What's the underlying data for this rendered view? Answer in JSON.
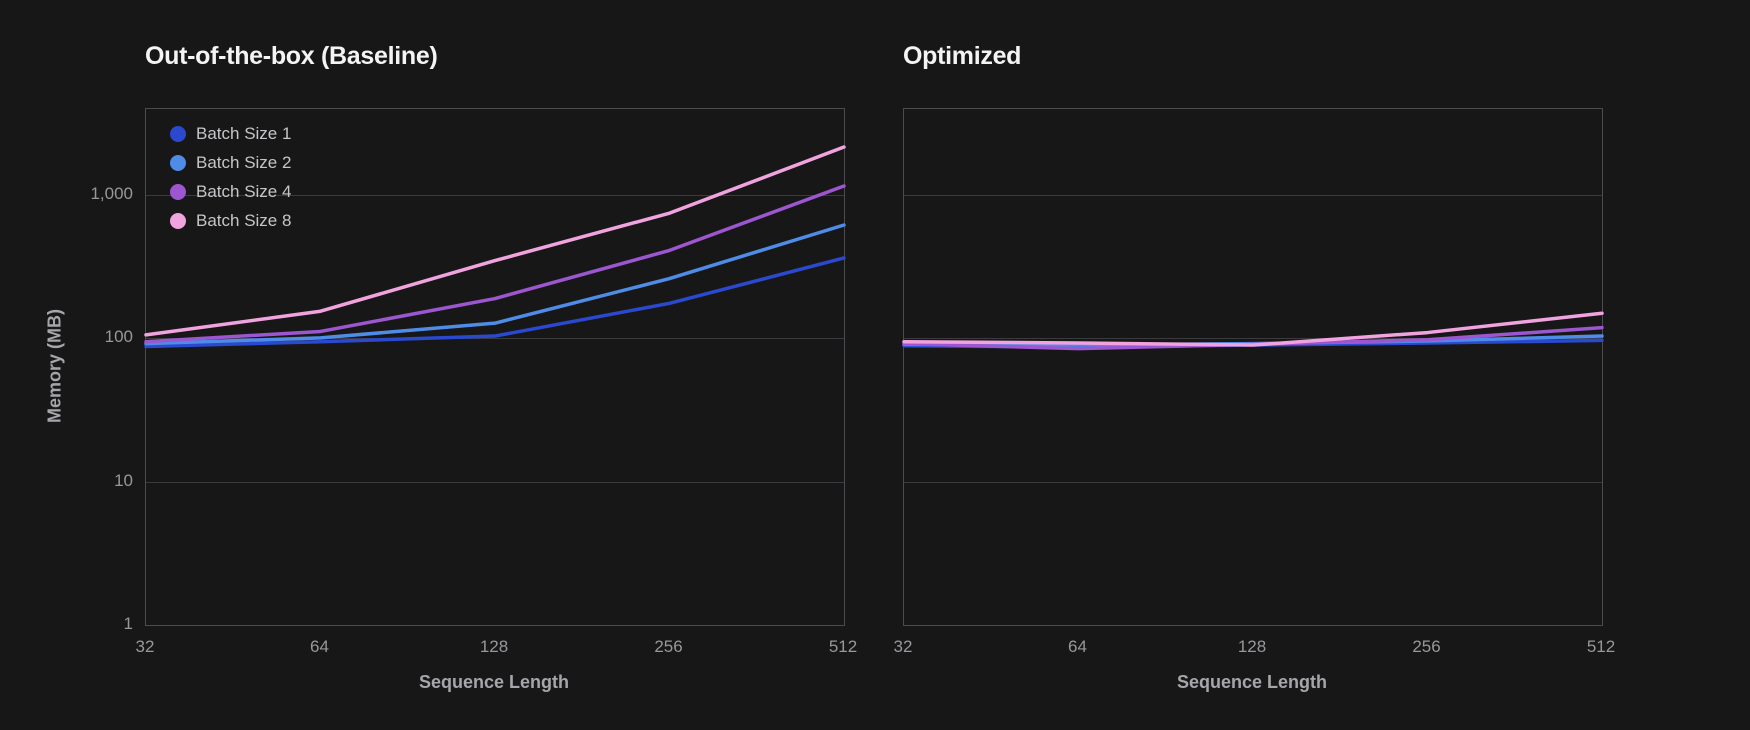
{
  "colors": {
    "background": "#171717",
    "plot_border": "#4b4b50",
    "gridline": "#3a3a3f",
    "title_text": "#f4f4f5",
    "tick_text": "#98989c",
    "axis_label_text": "#a6a6aa",
    "legend_text": "#c6c6ca"
  },
  "chart_data": [
    {
      "type": "line",
      "title": "Out-of-the-box (Baseline)",
      "xlabel": "Sequence Length",
      "ylabel": "Memory (MB)",
      "xscale": "log2",
      "yscale": "log10",
      "x": [
        32,
        64,
        128,
        256,
        512
      ],
      "xtick_labels": [
        "32",
        "64",
        "128",
        "256",
        "512"
      ],
      "ylim": [
        1,
        4000
      ],
      "yticks": [
        1,
        10,
        100,
        1000
      ],
      "ytick_labels": [
        "1",
        "10",
        "100",
        "1,000"
      ],
      "grid": true,
      "show_y_tick_labels": true,
      "show_legend": true,
      "legend_position": "top-left",
      "series": [
        {
          "name": "Batch Size 1",
          "color": "#2a49cf",
          "values": [
            88,
            95,
            104,
            176,
            365
          ]
        },
        {
          "name": "Batch Size 2",
          "color": "#4e8ce8",
          "values": [
            92,
            101,
            128,
            262,
            620
          ]
        },
        {
          "name": "Batch Size 4",
          "color": "#9c56d0",
          "values": [
            95,
            112,
            190,
            412,
            1160
          ]
        },
        {
          "name": "Batch Size 8",
          "color": "#f1a3e0",
          "values": [
            106,
            155,
            350,
            750,
            2170
          ]
        }
      ]
    },
    {
      "type": "line",
      "title": "Optimized",
      "xlabel": "Sequence Length",
      "ylabel": "",
      "xscale": "log2",
      "yscale": "log10",
      "x": [
        32,
        64,
        128,
        256,
        512
      ],
      "xtick_labels": [
        "32",
        "64",
        "128",
        "256",
        "512"
      ],
      "ylim": [
        1,
        4000
      ],
      "yticks": [
        1,
        10,
        100,
        1000
      ],
      "ytick_labels": [
        "1",
        "10",
        "100",
        "1,000"
      ],
      "grid": true,
      "show_y_tick_labels": false,
      "show_legend": false,
      "legend_position": "none",
      "series": [
        {
          "name": "Batch Size 1",
          "color": "#2a49cf",
          "values": [
            89,
            87,
            90,
            93,
            97
          ]
        },
        {
          "name": "Batch Size 2",
          "color": "#4e8ce8",
          "values": [
            91,
            90,
            92,
            96,
            104
          ]
        },
        {
          "name": "Batch Size 4",
          "color": "#9c56d0",
          "values": [
            92,
            85,
            91,
            98,
            119
          ]
        },
        {
          "name": "Batch Size 8",
          "color": "#f1a3e0",
          "values": [
            95,
            93,
            90,
            110,
            150
          ]
        }
      ]
    }
  ]
}
